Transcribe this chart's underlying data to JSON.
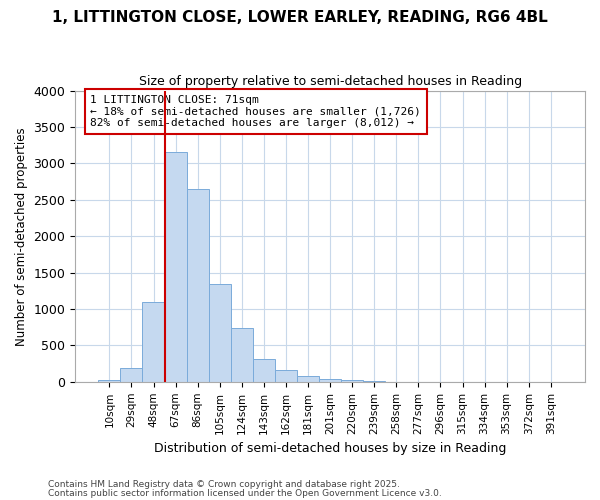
{
  "title1": "1, LITTINGTON CLOSE, LOWER EARLEY, READING, RG6 4BL",
  "title2": "Size of property relative to semi-detached houses in Reading",
  "xlabel": "Distribution of semi-detached houses by size in Reading",
  "ylabel": "Number of semi-detached properties",
  "bar_labels": [
    "10sqm",
    "29sqm",
    "48sqm",
    "67sqm",
    "86sqm",
    "105sqm",
    "124sqm",
    "143sqm",
    "162sqm",
    "181sqm",
    "201sqm",
    "220sqm",
    "239sqm",
    "258sqm",
    "277sqm",
    "296sqm",
    "315sqm",
    "334sqm",
    "353sqm",
    "372sqm",
    "391sqm"
  ],
  "bar_values": [
    20,
    185,
    1090,
    3160,
    2650,
    1350,
    740,
    310,
    165,
    80,
    45,
    30,
    10,
    0,
    0,
    0,
    0,
    0,
    0,
    0,
    0
  ],
  "bar_color": "#c5d9f0",
  "bar_edge_color": "#7aabda",
  "grid_color": "#c8d8ea",
  "background_color": "#ffffff",
  "fig_background": "#ffffff",
  "vline_x_index": 3,
  "vline_color": "#cc0000",
  "annotation_title": "1 LITTINGTON CLOSE: 71sqm",
  "annotation_line1": "← 18% of semi-detached houses are smaller (1,726)",
  "annotation_line2": "82% of semi-detached houses are larger (8,012) →",
  "annotation_box_color": "#ffffff",
  "annotation_box_edge": "#cc0000",
  "ylim": [
    0,
    4000
  ],
  "yticks": [
    0,
    500,
    1000,
    1500,
    2000,
    2500,
    3000,
    3500,
    4000
  ],
  "footnote1": "Contains HM Land Registry data © Crown copyright and database right 2025.",
  "footnote2": "Contains public sector information licensed under the Open Government Licence v3.0."
}
